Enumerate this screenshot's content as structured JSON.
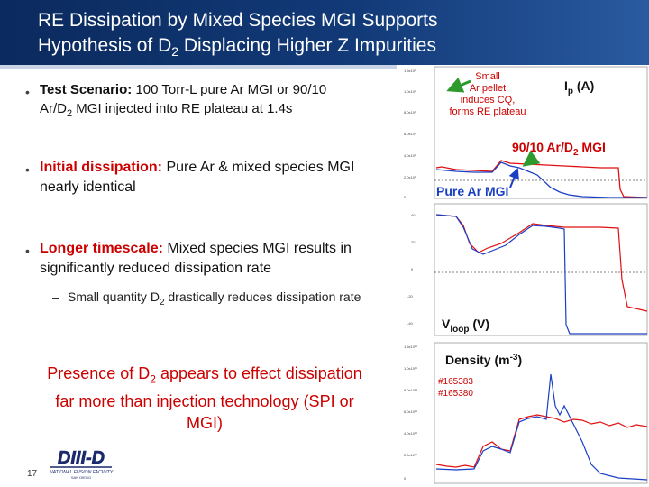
{
  "title": {
    "line1": "RE Dissipation by Mixed Species MGI Supports",
    "line2a": "Hypothesis of D",
    "line2sub": "2",
    "line2b": " Displacing Higher Z Impurities"
  },
  "bullets": [
    {
      "head": "Test Scenario:",
      "l1": " 100 Torr-L pure Ar MGI or 90/10",
      "l2a": "Ar/D",
      "l2sub": "2",
      "l2b": " MGI injected into RE plateau at 1.4s"
    },
    {
      "head": "Initial dissipation:",
      "body": " Pure Ar & mixed species MGI nearly identical"
    },
    {
      "head": "Longer timescale:",
      "body": " Mixed species MGI results in significantly reduced dissipation rate"
    }
  ],
  "sub_bullet": {
    "a": "Small quantity D",
    "sub": "2",
    "b": " drastically reduces dissipation rate",
    "dash": "–"
  },
  "presence": {
    "a": "Presence of D",
    "sub": "2",
    "b": " appears to effect dissipation far more than injection technology (SPI or MGI)"
  },
  "bullet_symbol": "•",
  "page_number": "17",
  "logo": {
    "main": "DIII-D",
    "tag": "NATIONAL FUSION FACILITY",
    "place": "SAN DIEGO"
  },
  "plot_labels": {
    "ip_a": "I",
    "ip_sub": "p",
    "ip_b": " (A)",
    "small1": "Small",
    "small2": "Ar pellet",
    "small3": "induces CQ,",
    "small4": "forms RE plateau",
    "mix_a": "90/10 Ar/D",
    "mix_sub": "2",
    "mix_b": " MGI",
    "pure": "Pure Ar MGI",
    "v_a": "V",
    "v_sub": "loop",
    "v_b": " (V)",
    "dens_a": "Density (m",
    "dens_sup": "-3",
    "dens_b": ")",
    "shot1": "#165383",
    "shot2": "#165380"
  },
  "colors": {
    "red": "#cc0000",
    "blue": "#1a3fc4",
    "series_red": "#e01010",
    "arrow": "#2e9a2e"
  }
}
